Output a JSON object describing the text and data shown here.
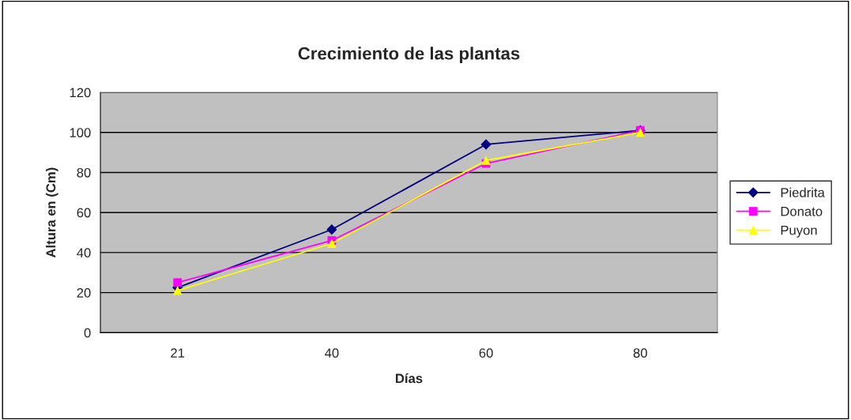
{
  "chart_data": {
    "type": "line",
    "title": "Crecimiento de las plantas",
    "xlabel": "Días",
    "ylabel": "Altura en (Cm)",
    "categories": [
      "21",
      "40",
      "60",
      "80"
    ],
    "series": [
      {
        "name": "Piedrita",
        "color": "#000080",
        "marker": "diamond",
        "values": [
          22.5,
          51.5,
          94,
          101
        ]
      },
      {
        "name": "Donato",
        "color": "#ff00ff",
        "marker": "square",
        "values": [
          25,
          46,
          84.5,
          101
        ]
      },
      {
        "name": "Puyon",
        "color": "#ffff00",
        "marker": "triangle",
        "values": [
          21,
          44.5,
          86,
          100
        ]
      }
    ],
    "ylim": [
      0,
      120
    ],
    "yticks": [
      0,
      20,
      40,
      60,
      80,
      100,
      120
    ],
    "grid": "y",
    "legend": "right",
    "line_style": "solid"
  }
}
